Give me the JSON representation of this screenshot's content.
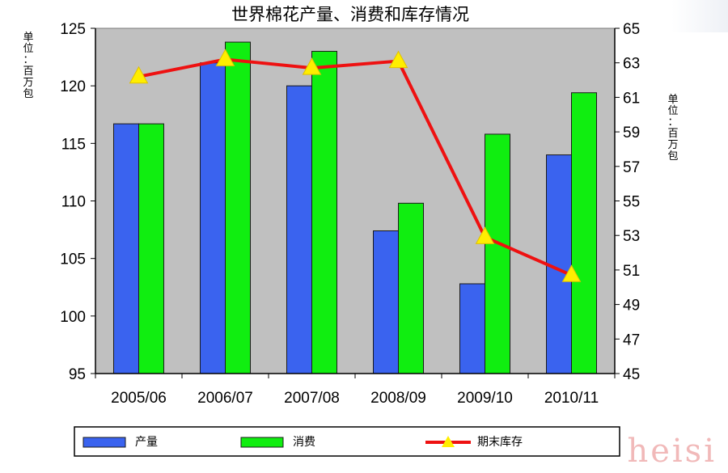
{
  "chart_data": {
    "type": "bar",
    "title": "世界棉花产量、消费和库存情况",
    "categories": [
      "2005/06",
      "2006/07",
      "2007/08",
      "2008/09",
      "2009/10",
      "2010/11"
    ],
    "series": [
      {
        "name": "产量",
        "type": "bar",
        "axis": "left",
        "color": "#3a63ef",
        "values": [
          116.7,
          122.0,
          120.0,
          107.4,
          102.8,
          114.0
        ]
      },
      {
        "name": "消费",
        "type": "bar",
        "axis": "left",
        "color": "#10ee10",
        "values": [
          116.7,
          123.8,
          123.0,
          109.8,
          115.8,
          119.4
        ]
      },
      {
        "name": "期末库存",
        "type": "line",
        "axis": "right",
        "color": "#ee1111",
        "marker_color": "#ffee00",
        "values": [
          62.2,
          63.2,
          62.7,
          63.1,
          52.9,
          50.7
        ]
      }
    ],
    "y_left": {
      "label": "单位：百万包",
      "ylim": [
        95,
        125
      ],
      "ticks": [
        "95",
        "100",
        "105",
        "110",
        "115",
        "120",
        "125"
      ]
    },
    "y_right": {
      "label": "单位：百万包",
      "ylim": [
        45,
        65
      ],
      "ticks": [
        "45",
        "47",
        "49",
        "51",
        "53",
        "55",
        "57",
        "59",
        "61",
        "63",
        "65"
      ]
    },
    "plot_background": "#c0c0c0",
    "grid": false,
    "legend_position": "bottom"
  },
  "watermark": "heisi"
}
